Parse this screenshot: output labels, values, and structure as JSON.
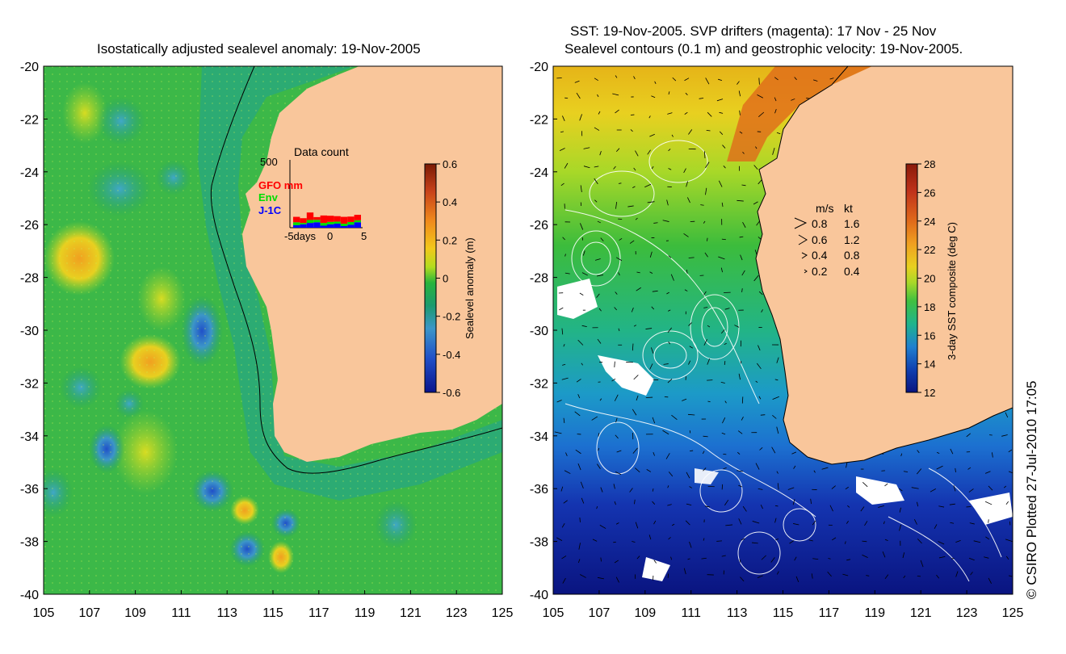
{
  "left_panel": {
    "title": "Isostatically adjusted sealevel anomaly: 19-Nov-2005",
    "colorbar": {
      "label": "Sealevel anomaly (m)",
      "ticks": [
        "0.6",
        "0.4",
        "0.2",
        "0",
        "-0.2",
        "-0.4",
        "-0.6"
      ],
      "colors": [
        "#7a1a05",
        "#c8421a",
        "#f08a1c",
        "#f2c81a",
        "#b4dc1e",
        "#28b43c",
        "#1c9a6e",
        "#3c96c8",
        "#2050c8",
        "#0a148c"
      ]
    },
    "inset": {
      "title": "Data count",
      "ymax_label": "500",
      "legend": [
        {
          "label": "GFO mm",
          "color": "#ff0000"
        },
        {
          "label": "Env",
          "color": "#00dd00"
        },
        {
          "label": "J-1C",
          "color": "#0000ff"
        }
      ],
      "x_labels": [
        "-5days",
        "0",
        "5"
      ],
      "bars": [
        {
          "j1c": 18,
          "env": 22,
          "gfo": 40
        },
        {
          "j1c": 25,
          "env": 10,
          "gfo": 35
        },
        {
          "j1c": 35,
          "env": 22,
          "gfo": 55
        },
        {
          "j1c": 40,
          "env": 18,
          "gfo": 20
        },
        {
          "j1c": 15,
          "env": 20,
          "gfo": 55
        },
        {
          "j1c": 25,
          "env": 18,
          "gfo": 45
        },
        {
          "j1c": 30,
          "env": 15,
          "gfo": 40
        },
        {
          "j1c": 12,
          "env": 18,
          "gfo": 50
        },
        {
          "j1c": 22,
          "env": 20,
          "gfo": 40
        },
        {
          "j1c": 40,
          "env": 15,
          "gfo": 40
        }
      ]
    }
  },
  "right_panel": {
    "title_line1": "SST: 19-Nov-2005. SVP drifters (magenta): 17 Nov - 25 Nov",
    "title_line2": "Sealevel contours (0.1 m) and geostrophic velocity: 19-Nov-2005.",
    "colorbar": {
      "label": "3-day SST composite (deg C)",
      "ticks": [
        "28",
        "26",
        "24",
        "22",
        "20",
        "18",
        "16",
        "14",
        "12"
      ],
      "colors": [
        "#8a1a0a",
        "#c0321a",
        "#e06a1a",
        "#f0a020",
        "#e8d020",
        "#a8d828",
        "#40c040",
        "#20b48c",
        "#2080d0",
        "#1040b0",
        "#0a1480"
      ]
    },
    "velocity_legend": {
      "header_ms": "m/s",
      "header_kt": "kt",
      "rows": [
        {
          "ms": "0.8",
          "kt": "1.6"
        },
        {
          "ms": "0.6",
          "kt": "1.2"
        },
        {
          "ms": "0.4",
          "kt": "0.8"
        },
        {
          "ms": "0.2",
          "kt": "0.4"
        }
      ]
    }
  },
  "axes": {
    "lat_labels": [
      "-20",
      "-22",
      "-24",
      "-26",
      "-28",
      "-30",
      "-32",
      "-34",
      "-36",
      "-38",
      "-40"
    ],
    "lon_labels": [
      "105",
      "107",
      "109",
      "111",
      "113",
      "115",
      "117",
      "119",
      "121",
      "123",
      "125"
    ]
  },
  "credit": "© CSIRO Plotted 27-Jul-2010 17:05",
  "colors": {
    "land": "#f9c69b",
    "ocean_base_left": "#3cb848",
    "shelf_left": "#2aaa78",
    "ocean_warm_right": "#e0c420",
    "ocean_cold_right": "#0a1e96"
  }
}
